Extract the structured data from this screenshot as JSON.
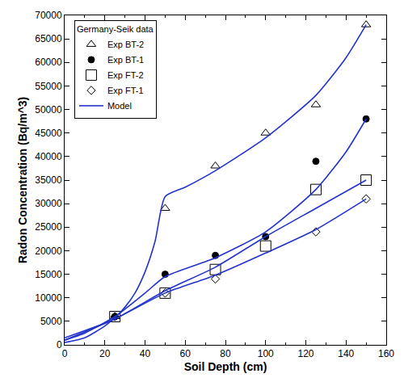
{
  "chart_data": {
    "type": "scatter",
    "x_label": "Soil Depth (cm)",
    "y_label": "Radon Concentration (Bq/m^3)",
    "legend_title": "Germany-Seik data",
    "legend": "top left",
    "grid": false,
    "xlim": [
      0,
      160
    ],
    "xticks": [
      0,
      20,
      40,
      60,
      80,
      100,
      120,
      140,
      160
    ],
    "ylim": [
      0,
      70000
    ],
    "yticks": [
      0,
      5000,
      10000,
      15000,
      20000,
      25000,
      30000,
      35000,
      40000,
      45000,
      50000,
      55000,
      60000,
      65000,
      70000
    ],
    "series": [
      {
        "name": "Exp BT-2",
        "type": "scatter",
        "marker": "triangle-up-open",
        "color": "#000000",
        "x": [
          25,
          50,
          75,
          100,
          125,
          150
        ],
        "values": [
          6000,
          29000,
          38000,
          45000,
          51000,
          68000
        ]
      },
      {
        "name": "Exp BT-1",
        "type": "scatter",
        "marker": "circle",
        "color": "#000000",
        "x": [
          25,
          50,
          75,
          100,
          125,
          150
        ],
        "values": [
          6000,
          15000,
          19000,
          23000,
          39000,
          48000
        ]
      },
      {
        "name": "Exp FT-2",
        "type": "scatter",
        "marker": "square-open",
        "color": "#000000",
        "x": [
          25,
          50,
          75,
          100,
          125,
          150
        ],
        "values": [
          6000,
          11000,
          16000,
          21000,
          33000,
          35000
        ]
      },
      {
        "name": "Exp FT-1",
        "type": "scatter",
        "marker": "diamond-open",
        "color": "#000000",
        "x": [
          25,
          50,
          75,
          125,
          150
        ],
        "values": [
          6000,
          11000,
          14000,
          24000,
          31000
        ]
      },
      {
        "name": "Model",
        "type": "line",
        "line_style": "solid",
        "color": "#2233cc",
        "x": [
          0,
          10,
          20,
          25,
          30,
          35,
          40,
          45,
          50,
          60,
          75,
          100,
          125,
          140,
          150
        ],
        "values": [
          500,
          1500,
          4000,
          5800,
          8000,
          11000,
          15500,
          22000,
          31500,
          33500,
          37000,
          44000,
          53000,
          61000,
          68000
        ]
      },
      {
        "name": "Model",
        "type": "line",
        "line_style": "solid",
        "color": "#2233cc",
        "x": [
          0,
          10,
          25,
          40,
          50,
          75,
          100,
          125,
          140,
          150
        ],
        "values": [
          1000,
          2500,
          6000,
          11000,
          14500,
          18500,
          24000,
          33000,
          41000,
          48000
        ]
      },
      {
        "name": "Model",
        "type": "line",
        "line_style": "solid",
        "color": "#2233cc",
        "x": [
          0,
          25,
          50,
          75,
          100,
          125,
          150
        ],
        "values": [
          1500,
          5500,
          11500,
          16500,
          23000,
          29000,
          35000
        ]
      },
      {
        "name": "Model",
        "type": "line",
        "line_style": "solid",
        "color": "#2233cc",
        "x": [
          0,
          25,
          50,
          75,
          100,
          125,
          150
        ],
        "values": [
          1000,
          5500,
          11000,
          14800,
          19500,
          24500,
          31000
        ]
      }
    ]
  }
}
